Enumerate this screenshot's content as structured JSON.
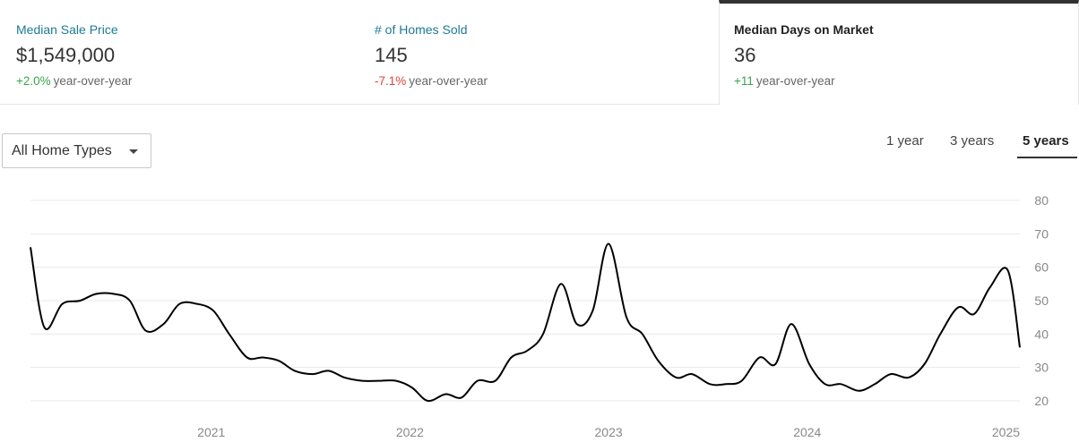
{
  "stats": [
    {
      "label": "Median Sale Price",
      "value": "$1,549,000",
      "delta": "+2.0%",
      "delta_color": "#3aa54a",
      "suffix": "year-over-year"
    },
    {
      "label": "# of Homes Sold",
      "value": "145",
      "delta": "-7.1%",
      "delta_color": "#d9453b",
      "suffix": "year-over-year"
    },
    {
      "label": "Median Days on Market",
      "value": "36",
      "delta": "+11",
      "delta_color": "#3aa54a",
      "suffix": "year-over-year",
      "selected": true
    }
  ],
  "filter": {
    "label": "All Home Types",
    "icon": "caret-down-icon"
  },
  "range_tabs": [
    {
      "label": "1 year",
      "active": false
    },
    {
      "label": "3 years",
      "active": false
    },
    {
      "label": "5 years",
      "active": true
    }
  ],
  "chart_data": {
    "type": "line",
    "title": "",
    "xlabel": "",
    "ylabel": "",
    "ylim": [
      20,
      80
    ],
    "yticks": [
      20,
      30,
      40,
      50,
      60,
      70,
      80
    ],
    "xticks": [
      {
        "label": "2021",
        "x": 2021.0
      },
      {
        "label": "2022",
        "x": 2022.0
      },
      {
        "label": "2023",
        "x": 2023.0
      },
      {
        "label": "2024",
        "x": 2024.0
      },
      {
        "label": "2025",
        "x": 2025.0
      }
    ],
    "xlim": [
      2020.09,
      2025.07
    ],
    "grid": true,
    "line_color": "#000000",
    "series": [
      {
        "name": "",
        "points": [
          [
            2020.09,
            66
          ],
          [
            2020.16,
            42
          ],
          [
            2020.25,
            49
          ],
          [
            2020.34,
            50
          ],
          [
            2020.42,
            52
          ],
          [
            2020.51,
            52
          ],
          [
            2020.59,
            50
          ],
          [
            2020.67,
            41
          ],
          [
            2020.76,
            43
          ],
          [
            2020.84,
            49
          ],
          [
            2020.93,
            49
          ],
          [
            2021.01,
            47
          ],
          [
            2021.09,
            40
          ],
          [
            2021.18,
            33
          ],
          [
            2021.26,
            33
          ],
          [
            2021.34,
            32
          ],
          [
            2021.42,
            29
          ],
          [
            2021.51,
            28
          ],
          [
            2021.59,
            29
          ],
          [
            2021.67,
            27
          ],
          [
            2021.76,
            26
          ],
          [
            2021.84,
            26
          ],
          [
            2021.93,
            26
          ],
          [
            2022.01,
            24
          ],
          [
            2022.09,
            20
          ],
          [
            2022.18,
            22
          ],
          [
            2022.26,
            21
          ],
          [
            2022.34,
            26
          ],
          [
            2022.43,
            26
          ],
          [
            2022.51,
            33
          ],
          [
            2022.59,
            35
          ],
          [
            2022.67,
            40
          ],
          [
            2022.76,
            55
          ],
          [
            2022.84,
            43
          ],
          [
            2022.92,
            47
          ],
          [
            2023.0,
            67
          ],
          [
            2023.09,
            45
          ],
          [
            2023.17,
            40
          ],
          [
            2023.25,
            32
          ],
          [
            2023.34,
            27
          ],
          [
            2023.42,
            28
          ],
          [
            2023.51,
            25
          ],
          [
            2023.59,
            25
          ],
          [
            2023.67,
            26
          ],
          [
            2023.76,
            33
          ],
          [
            2023.84,
            31
          ],
          [
            2023.92,
            43
          ],
          [
            2024.01,
            31
          ],
          [
            2024.09,
            25
          ],
          [
            2024.17,
            25
          ],
          [
            2024.26,
            23
          ],
          [
            2024.34,
            25
          ],
          [
            2024.42,
            28
          ],
          [
            2024.51,
            27
          ],
          [
            2024.59,
            31
          ],
          [
            2024.67,
            40
          ],
          [
            2024.76,
            48
          ],
          [
            2024.84,
            46
          ],
          [
            2024.92,
            54
          ],
          [
            2025.01,
            59
          ],
          [
            2025.07,
            36
          ]
        ]
      }
    ]
  }
}
